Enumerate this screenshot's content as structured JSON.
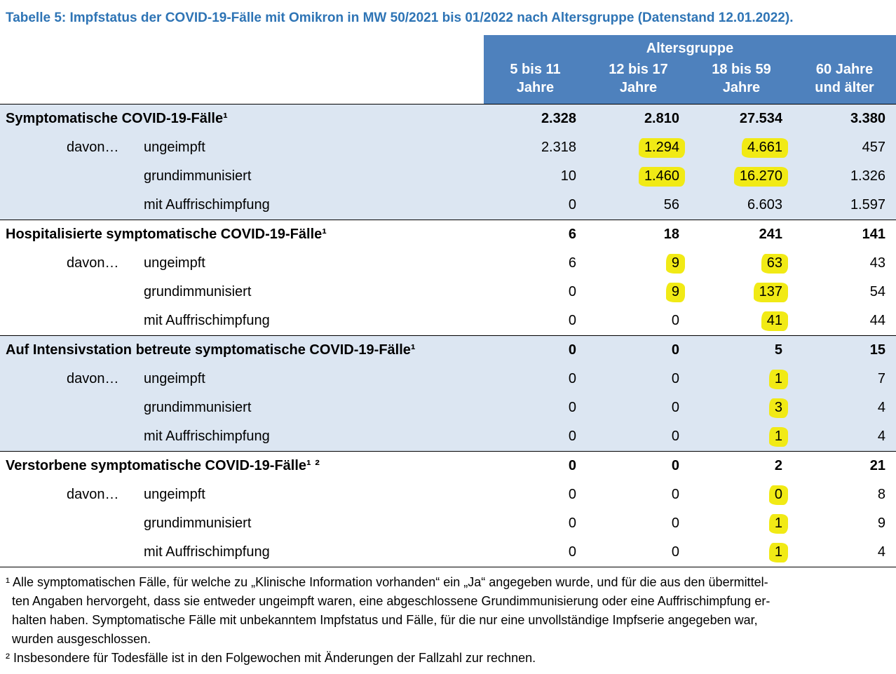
{
  "title": "Tabelle 5: Impfstatus der COVID-19-Fälle mit Omikron in MW 50/2021 bis 01/2022 nach Altersgruppe (Datenstand 12.01.2022).",
  "colors": {
    "title_color": "#2e74b5",
    "header_bg": "#4e81bd",
    "section_bg": "#dce6f2",
    "highlight": "#f1ea15"
  },
  "table": {
    "group_header": "Altersgruppe",
    "columns": [
      {
        "line1": "5 bis 11",
        "line2": "Jahre"
      },
      {
        "line1": "12 bis 17",
        "line2": "Jahre"
      },
      {
        "line1": "18 bis 59",
        "line2": "Jahre"
      },
      {
        "line1": "60 Jahre",
        "line2": "und älter"
      }
    ],
    "sections": [
      {
        "label": "Symptomatische COVID-19-Fälle¹",
        "values": [
          "2.328",
          "2.810",
          "27.534",
          "3.380"
        ],
        "rows": [
          {
            "prefix": "davon…",
            "label": "ungeimpft",
            "values": [
              "2.318",
              "1.294",
              "4.661",
              "457"
            ],
            "highlights": [
              false,
              true,
              true,
              false
            ]
          },
          {
            "prefix": "",
            "label": "grundimmunisiert",
            "values": [
              "10",
              "1.460",
              "16.270",
              "1.326"
            ],
            "highlights": [
              false,
              true,
              true,
              false
            ]
          },
          {
            "prefix": "",
            "label": "mit Auffrischimpfung",
            "values": [
              "0",
              "56",
              "6.603",
              "1.597"
            ],
            "highlights": [
              false,
              false,
              false,
              false
            ]
          }
        ]
      },
      {
        "label": "Hospitalisierte symptomatische COVID-19-Fälle¹",
        "values": [
          "6",
          "18",
          "241",
          "141"
        ],
        "rows": [
          {
            "prefix": "davon…",
            "label": "ungeimpft",
            "values": [
              "6",
              "9",
              "63",
              "43"
            ],
            "highlights": [
              false,
              true,
              true,
              false
            ]
          },
          {
            "prefix": "",
            "label": "grundimmunisiert",
            "values": [
              "0",
              "9",
              "137",
              "54"
            ],
            "highlights": [
              false,
              true,
              true,
              false
            ]
          },
          {
            "prefix": "",
            "label": "mit Auffrischimpfung",
            "values": [
              "0",
              "0",
              "41",
              "44"
            ],
            "highlights": [
              false,
              false,
              true,
              false
            ]
          }
        ]
      },
      {
        "label": "Auf Intensivstation betreute symptomatische COVID-19-Fälle¹",
        "values": [
          "0",
          "0",
          "5",
          "15"
        ],
        "rows": [
          {
            "prefix": "davon…",
            "label": "ungeimpft",
            "values": [
              "0",
              "0",
              "1",
              "7"
            ],
            "highlights": [
              false,
              false,
              true,
              false
            ]
          },
          {
            "prefix": "",
            "label": "grundimmunisiert",
            "values": [
              "0",
              "0",
              "3",
              "4"
            ],
            "highlights": [
              false,
              false,
              true,
              false
            ]
          },
          {
            "prefix": "",
            "label": "mit Auffrischimpfung",
            "values": [
              "0",
              "0",
              "1",
              "4"
            ],
            "highlights": [
              false,
              false,
              true,
              false
            ]
          }
        ]
      },
      {
        "label": "Verstorbene symptomatische COVID-19-Fälle¹ ²",
        "values": [
          "0",
          "0",
          "2",
          "21"
        ],
        "rows": [
          {
            "prefix": "davon…",
            "label": "ungeimpft",
            "values": [
              "0",
              "0",
              "0",
              "8"
            ],
            "highlights": [
              false,
              false,
              true,
              false
            ]
          },
          {
            "prefix": "",
            "label": "grundimmunisiert",
            "values": [
              "0",
              "0",
              "1",
              "9"
            ],
            "highlights": [
              false,
              false,
              true,
              false
            ]
          },
          {
            "prefix": "",
            "label": "mit Auffrischimpfung",
            "values": [
              "0",
              "0",
              "1",
              "4"
            ],
            "highlights": [
              false,
              false,
              true,
              false
            ]
          }
        ]
      }
    ]
  },
  "footnotes": [
    "¹ Alle symptomatischen Fälle, für welche zu „Klinische Information vorhanden“ ein „Ja“ angegeben wurde, und für die aus den übermittel-",
    "ten Angaben hervorgeht, dass sie entweder ungeimpft waren, eine abgeschlossene Grundimmunisierung oder eine Auffrischimpfung er-",
    "halten haben. Symptomatische Fälle mit unbekanntem Impfstatus und Fälle, für die nur eine unvollständige Impfserie angegeben war,",
    "wurden ausgeschlossen.",
    "² Insbesondere für Todesfälle ist in den Folgewochen mit Änderungen der Fallzahl zur rechnen."
  ]
}
